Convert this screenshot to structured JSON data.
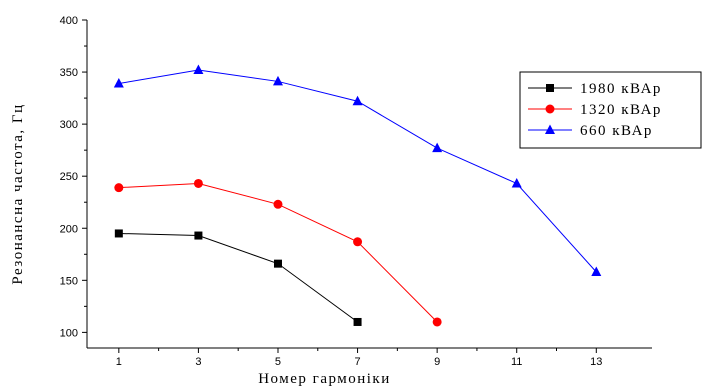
{
  "chart_data": {
    "type": "line",
    "xlabel": "Номер гармоніки",
    "ylabel": "Резонансна частота, Гц",
    "x_ticks": [
      1,
      3,
      5,
      7,
      9,
      11,
      13
    ],
    "y_ticks": [
      100,
      150,
      200,
      250,
      300,
      350,
      400
    ],
    "xlim": [
      0.2,
      14.4
    ],
    "ylim": [
      85,
      400
    ],
    "legend_position": "right",
    "grid": false,
    "series": [
      {
        "name": "1980 кВАр",
        "color": "#000000",
        "marker": "square",
        "x": [
          1,
          3,
          5,
          7
        ],
        "y": [
          195,
          193,
          166,
          110
        ]
      },
      {
        "name": "1320 кВАр",
        "color": "#ff0000",
        "marker": "circle",
        "x": [
          1,
          3,
          5,
          7,
          9
        ],
        "y": [
          239,
          243,
          223,
          187,
          110
        ]
      },
      {
        "name": "660 кВАр",
        "color": "#0000ff",
        "marker": "triangle",
        "x": [
          1,
          3,
          5,
          7,
          9,
          11,
          13
        ],
        "y": [
          339,
          352,
          341,
          322,
          277,
          243,
          158
        ]
      }
    ]
  }
}
